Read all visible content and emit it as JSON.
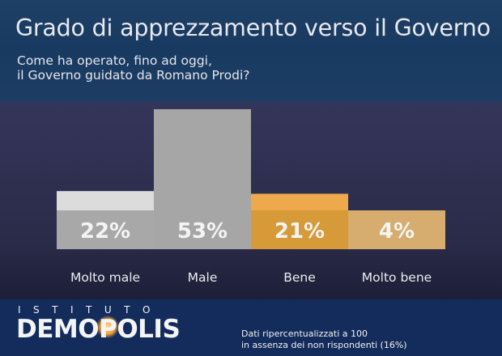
{
  "chart_data": {
    "type": "bar",
    "title": "Grado di apprezzamento verso il Governo",
    "subtitle": "Come ha operato, fino ad oggi,\nil Governo guidato da Romano Prodi?",
    "categories": [
      "Molto male",
      "Male",
      "Bene",
      "Molto bene"
    ],
    "values": [
      22,
      53,
      21,
      4
    ],
    "value_labels": [
      "22%",
      "53%",
      "21%",
      "4%"
    ],
    "ylim": [
      0,
      53
    ],
    "colors": [
      "#dcdcdc",
      "#a6a6a6",
      "#eda94b",
      "#f0c585"
    ],
    "label_colors": [
      "#a8a8a8",
      "#a6a6a6",
      "#d79a38",
      "#d6ad6e"
    ],
    "grid": false,
    "legend": "none"
  },
  "footer": {
    "logo_top": "ISTITUTO",
    "logo_main": "DEMOPOLIS",
    "note": "Dati ripercentualizzati a 100\nin assenza dei non rispondenti (16%)"
  }
}
